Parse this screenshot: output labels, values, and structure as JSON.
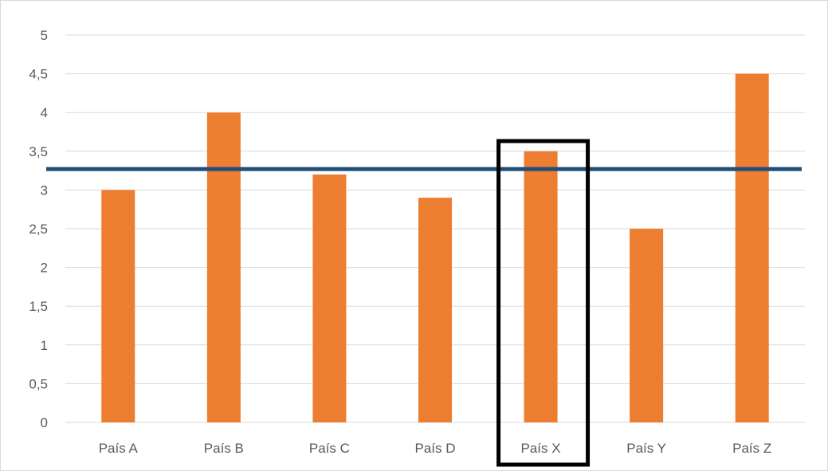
{
  "chart_data": {
    "type": "bar",
    "categories": [
      "País A",
      "País B",
      "País C",
      "País D",
      "País X",
      "País Y",
      "País Z"
    ],
    "values": [
      3,
      4,
      3.2,
      2.9,
      3.5,
      2.5,
      4.5
    ],
    "y_ticks": [
      "0",
      "0,5",
      "1",
      "1,5",
      "2",
      "2,5",
      "3",
      "3,5",
      "4",
      "4,5",
      "5"
    ],
    "ylim": [
      0,
      5
    ],
    "grid": true,
    "title": "",
    "xlabel": "",
    "ylabel": "",
    "reference_line": {
      "value": 3.27,
      "color": "#1f4e79"
    },
    "highlight_category": "País X",
    "colors": {
      "bar": "#ed7d31",
      "grid": "#d9d9d9",
      "text": "#595959",
      "highlight_box": "#000000"
    }
  }
}
